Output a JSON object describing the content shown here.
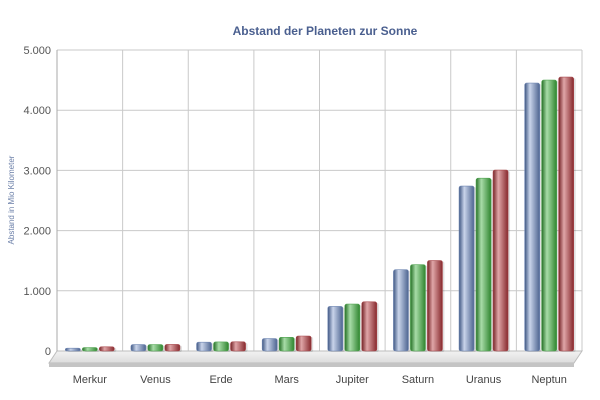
{
  "chart_data": {
    "type": "bar",
    "title": "Abstand der Planeten zur Sonne",
    "xlabel": "",
    "ylabel": "Abstand in Mio Kilometer",
    "categories": [
      "Merkur",
      "Venus",
      "Erde",
      "Mars",
      "Jupiter",
      "Saturn",
      "Uranus",
      "Neptun"
    ],
    "series": [
      {
        "values": [
          46,
          107,
          147,
          207,
          741,
          1350,
          2740,
          4450
        ]
      },
      {
        "values": [
          58,
          108,
          150,
          228,
          779,
          1434,
          2870,
          4500
        ]
      },
      {
        "values": [
          70,
          109,
          152,
          249,
          817,
          1503,
          3006,
          4550
        ]
      }
    ],
    "ylim": [
      0,
      5000
    ],
    "yticks": [
      "0",
      "1.000",
      "2.000",
      "3.000",
      "4.000",
      "5.000"
    ],
    "ytick_values": [
      0,
      1000,
      2000,
      3000,
      4000,
      5000
    ],
    "grid": true,
    "colors": [
      "#6f86b2",
      "#4fa34f",
      "#a8464a"
    ]
  }
}
